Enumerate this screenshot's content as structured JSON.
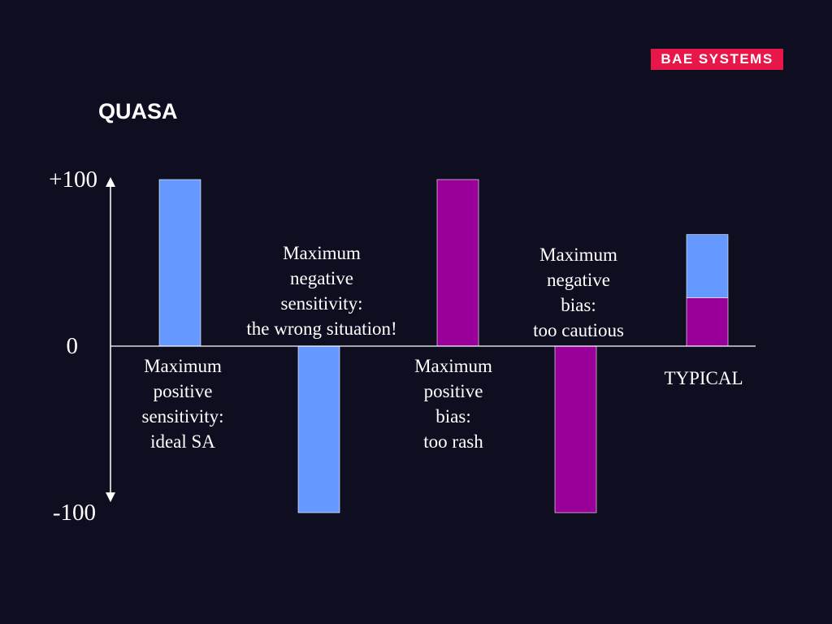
{
  "logo": {
    "text": "BAE SYSTEMS"
  },
  "chart_data": {
    "type": "bar",
    "title": "QUASA",
    "xlabel": "",
    "ylabel": "",
    "ylim": [
      -100,
      100
    ],
    "yticks": [
      "+100",
      "0",
      "-100"
    ],
    "grid": false,
    "legend": "none",
    "bars": [
      {
        "value_bottom": 0,
        "value_top": 100,
        "color": "#6699ff"
      },
      {
        "value_bottom": -100,
        "value_top": 0,
        "color": "#6699ff"
      },
      {
        "value_bottom": 0,
        "value_top": 100,
        "color": "#990099"
      },
      {
        "value_bottom": -100,
        "value_top": 0,
        "color": "#990099"
      },
      {
        "value_bottom": 29,
        "value_top": 67,
        "color": "#6699ff"
      },
      {
        "value_bottom": 0,
        "value_top": 29,
        "color": "#990099"
      }
    ],
    "annotations": [
      {
        "lines": [
          "Maximum",
          "positive",
          "sensitivity:",
          "ideal SA"
        ]
      },
      {
        "lines": [
          "Maximum",
          "negative",
          "sensitivity:",
          "the wrong situation!"
        ]
      },
      {
        "lines": [
          "Maximum",
          "positive",
          "bias:",
          "too rash"
        ]
      },
      {
        "lines": [
          "Maximum",
          "negative",
          "bias:",
          "too cautious"
        ]
      },
      {
        "lines": [
          "TYPICAL"
        ]
      }
    ]
  },
  "colors": {
    "background": "#0f0e20",
    "sensitivity": "#6699ff",
    "bias": "#990099",
    "brand": "#e8174a"
  }
}
